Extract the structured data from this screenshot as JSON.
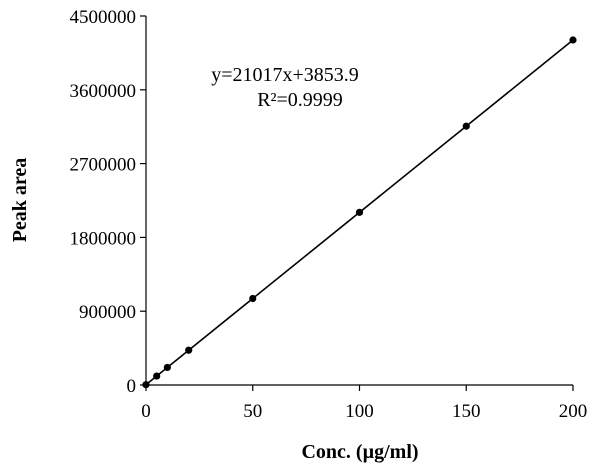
{
  "chart_data": {
    "type": "scatter",
    "title": "",
    "xlabel": "Conc. (µg/ml)",
    "ylabel": "Peak area",
    "xlim": [
      0,
      200
    ],
    "ylim": [
      0,
      4500000
    ],
    "x_ticks": [
      "0",
      "50",
      "100",
      "150",
      "200"
    ],
    "y_ticks": [
      "0",
      "900000",
      "1800000",
      "2700000",
      "3600000",
      "4500000"
    ],
    "grid": false,
    "legend": "none",
    "series": [
      {
        "x": [
          0,
          5,
          10,
          20,
          50,
          100,
          150,
          200
        ],
        "y": [
          3854,
          108939,
          214024,
          424194,
          1054704,
          2105554,
          3156404,
          4207254
        ]
      }
    ],
    "trendline": {
      "type": "linear",
      "slope": 21017,
      "intercept": 3853.9,
      "equation_label": "y=21017x+3853.9",
      "r2_label": "R²=0.9999"
    },
    "colors": {
      "marker": "#000000",
      "line": "#000000",
      "axis": "#000000"
    }
  }
}
